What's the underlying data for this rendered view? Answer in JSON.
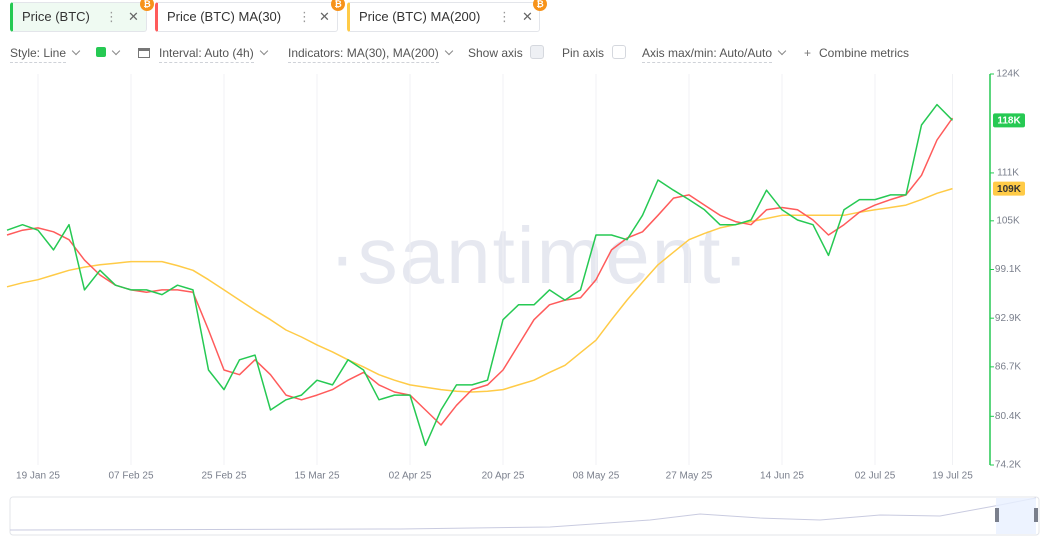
{
  "tabs": [
    {
      "label": "Price (BTC)",
      "color": "#26c953"
    },
    {
      "label": "Price (BTC) MA(30)",
      "color": "#ff5b5b"
    },
    {
      "label": "Price (BTC) MA(200)",
      "color": "#ffcb47"
    }
  ],
  "toolbar": {
    "style": "Style: Line",
    "interval": "Interval: Auto (4h)",
    "indicators": "Indicators: MA(30), MA(200)",
    "show_axis": "Show axis",
    "pin_axis": "Pin axis",
    "axis_minmax": "Axis max/min: Auto/Auto",
    "combine": "Combine metrics"
  },
  "watermark": "·santiment·",
  "chart_data": {
    "type": "line",
    "categories": [
      null,
      null,
      "19 Jan 25",
      null,
      null,
      null,
      null,
      null,
      "07 Feb 25",
      null,
      null,
      null,
      null,
      null,
      "25 Feb 25",
      null,
      null,
      null,
      null,
      null,
      "15 Mar 25",
      null,
      null,
      null,
      null,
      null,
      "02 Apr 25",
      null,
      null,
      null,
      null,
      null,
      "20 Apr 25",
      null,
      null,
      null,
      null,
      null,
      "08 May 25",
      null,
      null,
      null,
      null,
      null,
      "27 May 25",
      null,
      null,
      null,
      null,
      null,
      "14 Jun 25",
      null,
      null,
      null,
      null,
      null,
      "02 Jul 25",
      null,
      null,
      null,
      null,
      "19 Jul 25"
    ],
    "series": [
      {
        "name": "Price (BTC)",
        "color": "#26c953",
        "last_label": "118K",
        "values": [
          104100,
          104800,
          104100,
          101600,
          104800,
          96500,
          99000,
          97100,
          96500,
          96500,
          95900,
          97100,
          96500,
          86300,
          83800,
          87600,
          88200,
          81200,
          82500,
          83100,
          85000,
          84400,
          87600,
          86300,
          82500,
          83100,
          83100,
          76700,
          81200,
          84400,
          84400,
          85000,
          92700,
          94600,
          94600,
          96500,
          95200,
          96500,
          103500,
          103500,
          102900,
          106000,
          110500,
          109200,
          108000,
          106700,
          104800,
          104800,
          105400,
          109200,
          106700,
          105400,
          104800,
          100900,
          106700,
          108000,
          108000,
          108600,
          108600,
          117500,
          120100,
          118100
        ]
      },
      {
        "name": "Price (BTC) MA(30)",
        "color": "#ff5b5b",
        "values": [
          103500,
          104100,
          104400,
          103900,
          102900,
          100300,
          98400,
          97100,
          96500,
          96200,
          96500,
          96500,
          96200,
          91400,
          86300,
          85700,
          87600,
          85700,
          83100,
          82500,
          83100,
          83800,
          85000,
          86000,
          84400,
          83500,
          83100,
          81200,
          79300,
          81800,
          83800,
          84400,
          86300,
          89500,
          92700,
          94600,
          95200,
          95500,
          97800,
          101600,
          103100,
          103900,
          106000,
          108200,
          108600,
          107300,
          106000,
          105200,
          104800,
          106700,
          107000,
          106700,
          105400,
          103500,
          104800,
          106400,
          107300,
          108000,
          108600,
          111100,
          115600,
          118400
        ]
      },
      {
        "name": "Price (BTC) MA(200)",
        "color": "#ffcb47",
        "last_label": "109K",
        "values": [
          96900,
          97400,
          97800,
          98400,
          99000,
          99400,
          99700,
          99900,
          100100,
          100100,
          100100,
          99600,
          99000,
          97800,
          96500,
          95200,
          93900,
          92700,
          91400,
          90500,
          89500,
          88600,
          87600,
          86700,
          85700,
          85000,
          84400,
          84100,
          83800,
          83600,
          83500,
          83600,
          83800,
          84400,
          85000,
          86000,
          86900,
          88500,
          90100,
          92700,
          95200,
          97500,
          99700,
          101300,
          102900,
          103700,
          104400,
          104800,
          105200,
          105600,
          106000,
          106000,
          106000,
          106000,
          106000,
          106400,
          106700,
          107000,
          107300,
          108000,
          108800,
          109400
        ]
      }
    ],
    "ylim": [
      74200,
      124000
    ],
    "yticks": [
      {
        "value": 74200,
        "label": "74.2K"
      },
      {
        "value": 80400,
        "label": "80.4K"
      },
      {
        "value": 86700,
        "label": "86.7K"
      },
      {
        "value": 92900,
        "label": "92.9K"
      },
      {
        "value": 99100,
        "label": "99.1K"
      },
      {
        "value": 105300,
        "label": "105K"
      },
      {
        "value": 111400,
        "label": "111K"
      },
      {
        "value": 124000,
        "label": "124K"
      }
    ],
    "grid": "x",
    "axis_side": "right",
    "axis_color": "#26c953"
  }
}
